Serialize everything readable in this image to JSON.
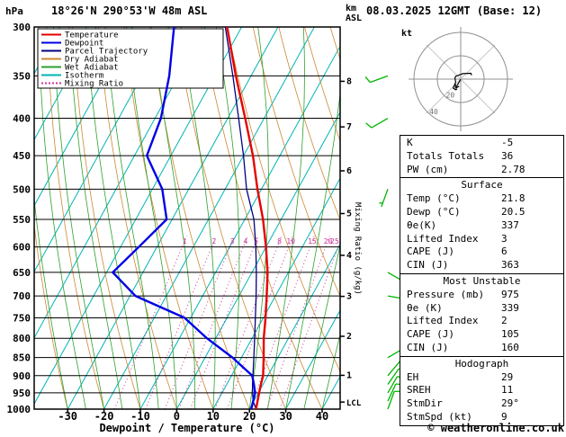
{
  "header": {
    "pressure_unit": "hPa",
    "station": "18°26'N 290°53'W 48m ASL",
    "km": "km",
    "asl": "ASL",
    "datetime": "08.03.2025 12GMT (Base: 12)"
  },
  "axes": {
    "x_label": "Dewpoint / Temperature (°C)",
    "x_ticks": [
      -30,
      -20,
      -10,
      0,
      10,
      20,
      30,
      40
    ],
    "pressure_ticks": [
      300,
      350,
      400,
      450,
      500,
      550,
      600,
      650,
      700,
      750,
      800,
      850,
      900,
      950,
      1000
    ],
    "lcl_label": "LCL",
    "mixing_ratio_axis_label": "Mixing Ratio (g/kg)"
  },
  "legend": {
    "items": [
      {
        "label": "Temperature",
        "color": "#e60000",
        "dash": false
      },
      {
        "label": "Dewpoint",
        "color": "#0000e6",
        "dash": false
      },
      {
        "label": "Parcel Trajectory",
        "color": "#000080",
        "dash": false
      },
      {
        "label": "Dry Adiabat",
        "color": "#cc8833",
        "dash": false
      },
      {
        "label": "Wet Adiabat",
        "color": "#2da02d",
        "dash": false
      },
      {
        "label": "Isotherm",
        "color": "#00b4b4",
        "dash": false
      },
      {
        "label": "Mixing Ratio",
        "color": "#cc3399",
        "dash": true
      }
    ]
  },
  "chart_data": {
    "type": "line",
    "title": "Skew-T log-P sounding",
    "pressure_hpa": [
      1000,
      975,
      950,
      925,
      900,
      850,
      800,
      750,
      700,
      650,
      600,
      550,
      500,
      450,
      400,
      350,
      300
    ],
    "series": [
      {
        "name": "Temperature",
        "color": "#e60000",
        "values_c": [
          21.8,
          21.0,
          20.2,
          19.4,
          18.7,
          16.1,
          13.2,
          10.6,
          7.6,
          4.3,
          0.0,
          -5.0,
          -11.1,
          -17.4,
          -25.2,
          -34.2,
          -44.0
        ]
      },
      {
        "name": "Dewpoint",
        "color": "#0000e6",
        "values_c": [
          20.5,
          19.8,
          19.1,
          17.5,
          15.7,
          7.5,
          -2.4,
          -11.7,
          -28.5,
          -38.3,
          -35.0,
          -31.5,
          -37.3,
          -46.6,
          -48.4,
          -52.5,
          -58.6
        ]
      },
      {
        "name": "Parcel Trajectory",
        "color": "#000080",
        "values_c": [
          21.8,
          19.8,
          18.4,
          17.1,
          15.9,
          13.4,
          10.7,
          7.8,
          4.7,
          1.2,
          -2.8,
          -7.5,
          -14.1,
          -20.0,
          -27.0,
          -35.0,
          -44.5
        ]
      }
    ],
    "x_axis_range_c": [
      -40,
      45
    ],
    "pressure_range_hpa": [
      300,
      1000
    ],
    "grid": {
      "isotherm_step_c": 10,
      "colors": {
        "isotherm": "#00b4b4",
        "dry_adiabat": "#cc8833",
        "wet_adiabat": "#2da02d",
        "mixing_ratio": "#cc3399",
        "pressure_line": "#000000"
      }
    },
    "mixing_ratio_g_kg": [
      1,
      2,
      3,
      4,
      5,
      8,
      10,
      15,
      20,
      25
    ],
    "km_asl_ticks": [
      {
        "km": 8,
        "hpa": 356
      },
      {
        "km": 7,
        "hpa": 411
      },
      {
        "km": 6,
        "hpa": 472
      },
      {
        "km": 5,
        "hpa": 540
      },
      {
        "km": 4,
        "hpa": 616
      },
      {
        "km": 3,
        "hpa": 701
      },
      {
        "km": 2,
        "hpa": 795
      },
      {
        "km": 1,
        "hpa": 899
      }
    ],
    "lcl_hpa": 978,
    "winds": [
      {
        "p": 1000,
        "dir": 20,
        "kt": 9
      },
      {
        "p": 975,
        "dir": 25,
        "kt": 10
      },
      {
        "p": 950,
        "dir": 30,
        "kt": 10
      },
      {
        "p": 925,
        "dir": 35,
        "kt": 10
      },
      {
        "p": 900,
        "dir": 40,
        "kt": 10
      },
      {
        "p": 850,
        "dir": 60,
        "kt": 5
      },
      {
        "p": 700,
        "dir": 100,
        "kt": 5
      },
      {
        "p": 650,
        "dir": 120,
        "kt": 5
      },
      {
        "p": 500,
        "dir": 200,
        "kt": 5
      },
      {
        "p": 400,
        "dir": 240,
        "kt": 10
      },
      {
        "p": 350,
        "dir": 250,
        "kt": 10
      }
    ],
    "wind_barb_color": "#00b400",
    "hodograph": {
      "unit": "kt",
      "rings_kt": [
        20,
        40
      ],
      "storm_dir_deg": 29,
      "storm_speed_kt": 9
    }
  },
  "stats": {
    "sections": [
      {
        "title": null,
        "rows": [
          [
            "K",
            "-5"
          ],
          [
            "Totals Totals",
            "36"
          ],
          [
            "PW (cm)",
            "2.78"
          ]
        ]
      },
      {
        "title": "Surface",
        "rows": [
          [
            "Temp (°C)",
            "21.8"
          ],
          [
            "Dewp (°C)",
            "20.5"
          ],
          [
            "θe(K)",
            "337"
          ],
          [
            "Lifted Index",
            "3"
          ],
          [
            "CAPE (J)",
            "6"
          ],
          [
            "CIN (J)",
            "363"
          ]
        ]
      },
      {
        "title": "Most Unstable",
        "rows": [
          [
            "Pressure (mb)",
            "975"
          ],
          [
            "θe (K)",
            "339"
          ],
          [
            "Lifted Index",
            "2"
          ],
          [
            "CAPE (J)",
            "105"
          ],
          [
            "CIN (J)",
            "160"
          ]
        ]
      },
      {
        "title": "Hodograph",
        "rows": [
          [
            "EH",
            "29"
          ],
          [
            "SREH",
            "11"
          ],
          [
            "StmDir",
            "29°"
          ],
          [
            "StmSpd (kt)",
            "9"
          ]
        ]
      }
    ]
  },
  "footer": {
    "copyright": "© weatheronline.co.uk"
  }
}
